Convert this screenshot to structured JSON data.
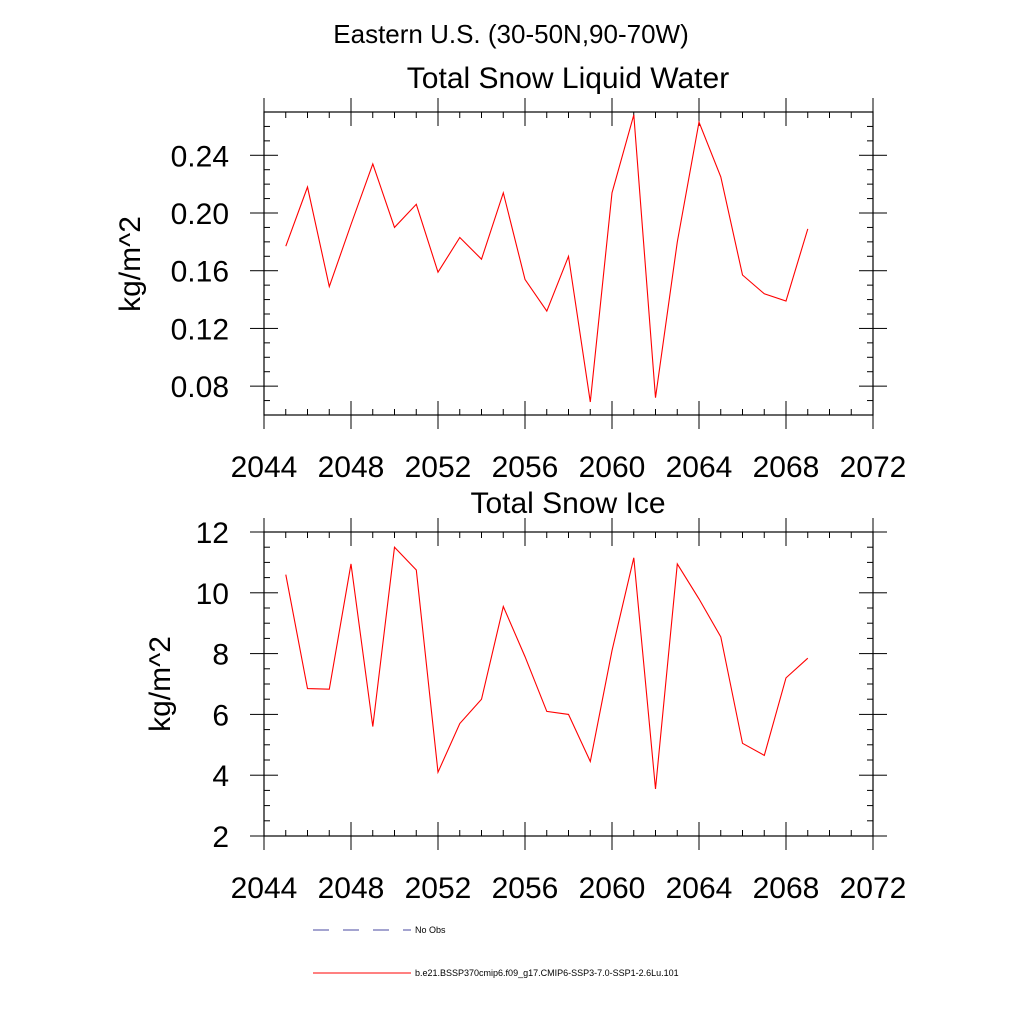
{
  "figure_title": "Eastern U.S. (30-50N,90-70W)",
  "chart_data": [
    {
      "type": "line",
      "title": "Total Snow Liquid Water",
      "xlabel": "",
      "ylabel": "kg/m^2",
      "xlim": [
        2044,
        2072
      ],
      "ylim": [
        0.06,
        0.27
      ],
      "xticks": [
        2044,
        2048,
        2052,
        2056,
        2060,
        2064,
        2068,
        2072
      ],
      "yticks": [
        0.08,
        0.12,
        0.16,
        0.2,
        0.24
      ],
      "ytick_labels": [
        "0.08",
        "0.12",
        "0.16",
        "0.20",
        "0.24"
      ],
      "grid": false,
      "series": [
        {
          "name": "b.e21.BSSP370cmip6.f09_g17.CMIP6-SSP3-7.0-SSP1-2.6Lu.101",
          "color": "#ff0000",
          "x": [
            2045,
            2046,
            2047,
            2048,
            2049,
            2050,
            2051,
            2052,
            2053,
            2054,
            2055,
            2056,
            2057,
            2058,
            2059,
            2060,
            2061,
            2062,
            2063,
            2064,
            2065,
            2066,
            2067,
            2068,
            2069
          ],
          "values": [
            0.177,
            0.218,
            0.149,
            0.192,
            0.234,
            0.19,
            0.206,
            0.159,
            0.183,
            0.168,
            0.214,
            0.154,
            0.132,
            0.17,
            0.069,
            0.214,
            0.268,
            0.072,
            0.18,
            0.263,
            0.225,
            0.157,
            0.144,
            0.139,
            0.189
          ]
        }
      ]
    },
    {
      "type": "line",
      "title": "Total Snow Ice",
      "xlabel": "",
      "ylabel": "kg/m^2",
      "xlim": [
        2044,
        2072
      ],
      "ylim": [
        2,
        12
      ],
      "xticks": [
        2044,
        2048,
        2052,
        2056,
        2060,
        2064,
        2068,
        2072
      ],
      "yticks": [
        2,
        4,
        6,
        8,
        10,
        12
      ],
      "ytick_labels": [
        "2",
        "4",
        "6",
        "8",
        "10",
        "12"
      ],
      "grid": false,
      "series": [
        {
          "name": "b.e21.BSSP370cmip6.f09_g17.CMIP6-SSP3-7.0-SSP1-2.6Lu.101",
          "color": "#ff0000",
          "x": [
            2045,
            2046,
            2047,
            2048,
            2049,
            2050,
            2051,
            2052,
            2053,
            2054,
            2055,
            2056,
            2057,
            2058,
            2059,
            2060,
            2061,
            2062,
            2063,
            2064,
            2065,
            2066,
            2067,
            2068,
            2069
          ],
          "values": [
            10.6,
            6.85,
            6.83,
            10.95,
            5.6,
            11.5,
            10.75,
            4.1,
            5.7,
            6.5,
            9.55,
            7.9,
            6.1,
            6.0,
            4.45,
            8.1,
            11.15,
            3.55,
            10.95,
            9.8,
            8.55,
            5.05,
            4.65,
            7.2,
            7.85
          ]
        }
      ]
    }
  ],
  "legend": [
    {
      "label": "No Obs",
      "color": "#4a4aa0",
      "style": "dashed"
    },
    {
      "label": "b.e21.BSSP370cmip6.f09_g17.CMIP6-SSP3-7.0-SSP1-2.6Lu.101",
      "color": "#ff0000",
      "style": "solid"
    }
  ]
}
